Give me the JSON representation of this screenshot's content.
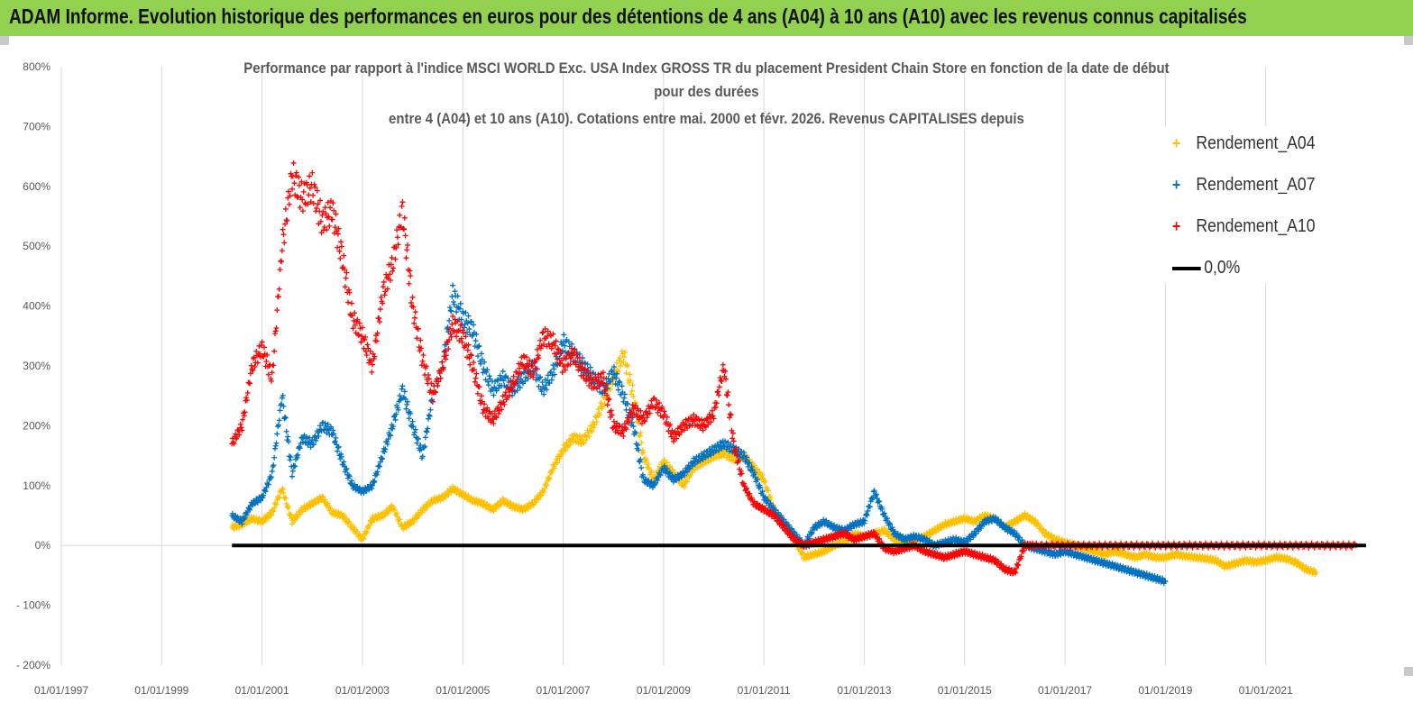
{
  "header": {
    "title": "ADAM Informe. Evolution historique des performances en euros pour des détentions de 4 ans (A04) à 10 ans (A10) avec les revenus connus capitalisés"
  },
  "chart_data": {
    "type": "scatter",
    "title_lines": [
      "Performance par rapport à l'indice MSCI WORLD Exc. USA Index GROSS TR  du placement President Chain Store  en fonction de la date de début",
      "pour des durées",
      "entre 4 (A04) et 10 ans (A10). Cotations entre mai. 2000 et févr. 2026. Revenus CAPITALISES depuis"
    ],
    "y_ticks": [
      "800%",
      "700%",
      "600%",
      "500%",
      "400%",
      "300%",
      "200%",
      "100%",
      "0%",
      "- 100%",
      "- 200%"
    ],
    "ylim": [
      -200,
      800
    ],
    "x_ticks": [
      "01/01/1997",
      "01/01/1999",
      "01/01/2001",
      "01/01/2003",
      "01/01/2005",
      "01/01/2007",
      "01/01/2009",
      "01/01/2011",
      "01/01/2013",
      "01/01/2015",
      "01/01/2017",
      "01/01/2019",
      "01/01/2021"
    ],
    "xlim": [
      1997.0,
      2023.0
    ],
    "series": [
      {
        "name": "Rendement_A04",
        "color": "#ffc000",
        "points": [
          [
            2000.4,
            30
          ],
          [
            2000.6,
            35
          ],
          [
            2000.8,
            45
          ],
          [
            2001.0,
            40
          ],
          [
            2001.2,
            55
          ],
          [
            2001.4,
            95
          ],
          [
            2001.6,
            40
          ],
          [
            2001.8,
            60
          ],
          [
            2002.0,
            70
          ],
          [
            2002.2,
            80
          ],
          [
            2002.4,
            55
          ],
          [
            2002.6,
            50
          ],
          [
            2002.8,
            30
          ],
          [
            2003.0,
            10
          ],
          [
            2003.2,
            45
          ],
          [
            2003.4,
            50
          ],
          [
            2003.6,
            65
          ],
          [
            2003.8,
            30
          ],
          [
            2004.0,
            40
          ],
          [
            2004.2,
            60
          ],
          [
            2004.4,
            75
          ],
          [
            2004.6,
            80
          ],
          [
            2004.8,
            95
          ],
          [
            2005.0,
            85
          ],
          [
            2005.2,
            75
          ],
          [
            2005.4,
            70
          ],
          [
            2005.6,
            60
          ],
          [
            2005.8,
            75
          ],
          [
            2006.0,
            65
          ],
          [
            2006.2,
            60
          ],
          [
            2006.4,
            70
          ],
          [
            2006.6,
            90
          ],
          [
            2006.8,
            130
          ],
          [
            2007.0,
            160
          ],
          [
            2007.2,
            180
          ],
          [
            2007.4,
            175
          ],
          [
            2007.6,
            200
          ],
          [
            2007.8,
            240
          ],
          [
            2008.0,
            280
          ],
          [
            2008.2,
            320
          ],
          [
            2008.4,
            250
          ],
          [
            2008.6,
            150
          ],
          [
            2008.8,
            110
          ],
          [
            2009.0,
            140
          ],
          [
            2009.2,
            120
          ],
          [
            2009.4,
            100
          ],
          [
            2009.6,
            130
          ],
          [
            2009.8,
            140
          ],
          [
            2010.0,
            150
          ],
          [
            2010.2,
            155
          ],
          [
            2010.4,
            145
          ],
          [
            2010.6,
            150
          ],
          [
            2010.8,
            130
          ],
          [
            2011.0,
            110
          ],
          [
            2011.2,
            60
          ],
          [
            2011.4,
            40
          ],
          [
            2011.6,
            10
          ],
          [
            2011.8,
            -20
          ],
          [
            2012.0,
            -15
          ],
          [
            2012.2,
            -10
          ],
          [
            2012.4,
            0
          ],
          [
            2012.6,
            5
          ],
          [
            2012.8,
            20
          ],
          [
            2013.0,
            15
          ],
          [
            2013.2,
            20
          ],
          [
            2013.4,
            25
          ],
          [
            2013.6,
            10
          ],
          [
            2013.8,
            0
          ],
          [
            2014.0,
            10
          ],
          [
            2014.2,
            15
          ],
          [
            2014.4,
            25
          ],
          [
            2014.6,
            35
          ],
          [
            2014.8,
            40
          ],
          [
            2015.0,
            45
          ],
          [
            2015.2,
            40
          ],
          [
            2015.4,
            50
          ],
          [
            2015.6,
            45
          ],
          [
            2015.8,
            30
          ],
          [
            2016.0,
            40
          ],
          [
            2016.2,
            50
          ],
          [
            2016.4,
            40
          ],
          [
            2016.6,
            20
          ],
          [
            2016.8,
            10
          ],
          [
            2017.0,
            5
          ],
          [
            2017.2,
            0
          ],
          [
            2017.4,
            -5
          ],
          [
            2017.6,
            -10
          ],
          [
            2017.8,
            -15
          ],
          [
            2018.0,
            -10
          ],
          [
            2018.2,
            -15
          ],
          [
            2018.4,
            -20
          ],
          [
            2018.6,
            -15
          ],
          [
            2018.8,
            -20
          ],
          [
            2019.0,
            -20
          ],
          [
            2019.2,
            -15
          ],
          [
            2019.4,
            -18
          ],
          [
            2019.6,
            -20
          ],
          [
            2019.8,
            -22
          ],
          [
            2020.0,
            -25
          ],
          [
            2020.2,
            -35
          ],
          [
            2020.4,
            -30
          ],
          [
            2020.6,
            -25
          ],
          [
            2020.8,
            -28
          ],
          [
            2021.0,
            -25
          ],
          [
            2021.2,
            -20
          ],
          [
            2021.4,
            -22
          ],
          [
            2021.6,
            -28
          ],
          [
            2021.8,
            -40
          ],
          [
            2022.0,
            -45
          ]
        ]
      },
      {
        "name": "Rendement_A07",
        "color": "#0070c0",
        "points": [
          [
            2000.4,
            50
          ],
          [
            2000.6,
            40
          ],
          [
            2000.8,
            70
          ],
          [
            2001.0,
            80
          ],
          [
            2001.2,
            120
          ],
          [
            2001.4,
            250
          ],
          [
            2001.6,
            120
          ],
          [
            2001.8,
            180
          ],
          [
            2002.0,
            170
          ],
          [
            2002.2,
            200
          ],
          [
            2002.4,
            190
          ],
          [
            2002.6,
            140
          ],
          [
            2002.8,
            100
          ],
          [
            2003.0,
            90
          ],
          [
            2003.2,
            100
          ],
          [
            2003.4,
            150
          ],
          [
            2003.6,
            200
          ],
          [
            2003.8,
            260
          ],
          [
            2004.0,
            200
          ],
          [
            2004.2,
            150
          ],
          [
            2004.4,
            250
          ],
          [
            2004.6,
            300
          ],
          [
            2004.8,
            420
          ],
          [
            2005.0,
            380
          ],
          [
            2005.2,
            360
          ],
          [
            2005.4,
            300
          ],
          [
            2005.6,
            260
          ],
          [
            2005.8,
            280
          ],
          [
            2006.0,
            260
          ],
          [
            2006.2,
            280
          ],
          [
            2006.4,
            300
          ],
          [
            2006.6,
            260
          ],
          [
            2006.8,
            290
          ],
          [
            2007.0,
            340
          ],
          [
            2007.2,
            320
          ],
          [
            2007.4,
            300
          ],
          [
            2007.6,
            280
          ],
          [
            2007.8,
            260
          ],
          [
            2008.0,
            290
          ],
          [
            2008.2,
            250
          ],
          [
            2008.4,
            200
          ],
          [
            2008.6,
            110
          ],
          [
            2008.8,
            100
          ],
          [
            2009.0,
            130
          ],
          [
            2009.2,
            110
          ],
          [
            2009.4,
            120
          ],
          [
            2009.6,
            140
          ],
          [
            2009.8,
            150
          ],
          [
            2010.0,
            160
          ],
          [
            2010.2,
            170
          ],
          [
            2010.4,
            160
          ],
          [
            2010.6,
            150
          ],
          [
            2010.8,
            120
          ],
          [
            2011.0,
            80
          ],
          [
            2011.2,
            60
          ],
          [
            2011.4,
            40
          ],
          [
            2011.6,
            20
          ],
          [
            2011.8,
            0
          ],
          [
            2012.0,
            30
          ],
          [
            2012.2,
            40
          ],
          [
            2012.4,
            30
          ],
          [
            2012.6,
            25
          ],
          [
            2012.8,
            35
          ],
          [
            2013.0,
            40
          ],
          [
            2013.2,
            90
          ],
          [
            2013.4,
            50
          ],
          [
            2013.6,
            20
          ],
          [
            2013.8,
            10
          ],
          [
            2014.0,
            15
          ],
          [
            2014.2,
            10
          ],
          [
            2014.4,
            0
          ],
          [
            2014.6,
            5
          ],
          [
            2014.8,
            10
          ],
          [
            2015.0,
            5
          ],
          [
            2015.2,
            20
          ],
          [
            2015.4,
            40
          ],
          [
            2015.6,
            45
          ],
          [
            2015.8,
            30
          ],
          [
            2016.0,
            20
          ],
          [
            2016.2,
            0
          ],
          [
            2016.4,
            -5
          ],
          [
            2016.6,
            -10
          ],
          [
            2016.8,
            -15
          ],
          [
            2017.0,
            -10
          ],
          [
            2017.2,
            -15
          ],
          [
            2017.4,
            -20
          ],
          [
            2017.6,
            -25
          ],
          [
            2017.8,
            -30
          ],
          [
            2018.0,
            -35
          ],
          [
            2018.2,
            -40
          ],
          [
            2018.4,
            -45
          ],
          [
            2018.6,
            -50
          ],
          [
            2018.8,
            -55
          ],
          [
            2019.0,
            -60
          ]
        ]
      },
      {
        "name": "Rendement_A10",
        "color": "#ff0000",
        "points": [
          [
            2000.4,
            170
          ],
          [
            2000.6,
            200
          ],
          [
            2000.8,
            300
          ],
          [
            2001.0,
            330
          ],
          [
            2001.2,
            280
          ],
          [
            2001.4,
            500
          ],
          [
            2001.6,
            620
          ],
          [
            2001.8,
            580
          ],
          [
            2002.0,
            600
          ],
          [
            2002.2,
            540
          ],
          [
            2002.4,
            560
          ],
          [
            2002.6,
            480
          ],
          [
            2002.8,
            380
          ],
          [
            2003.0,
            350
          ],
          [
            2003.2,
            300
          ],
          [
            2003.4,
            420
          ],
          [
            2003.6,
            470
          ],
          [
            2003.8,
            560
          ],
          [
            2004.0,
            400
          ],
          [
            2004.2,
            310
          ],
          [
            2004.4,
            250
          ],
          [
            2004.6,
            300
          ],
          [
            2004.8,
            370
          ],
          [
            2005.0,
            350
          ],
          [
            2005.2,
            300
          ],
          [
            2005.4,
            230
          ],
          [
            2005.6,
            210
          ],
          [
            2005.8,
            240
          ],
          [
            2006.0,
            270
          ],
          [
            2006.2,
            310
          ],
          [
            2006.4,
            290
          ],
          [
            2006.6,
            350
          ],
          [
            2006.8,
            340
          ],
          [
            2007.0,
            300
          ],
          [
            2007.2,
            320
          ],
          [
            2007.4,
            290
          ],
          [
            2007.6,
            270
          ],
          [
            2007.8,
            280
          ],
          [
            2008.0,
            200
          ],
          [
            2008.2,
            190
          ],
          [
            2008.4,
            230
          ],
          [
            2008.6,
            210
          ],
          [
            2008.8,
            240
          ],
          [
            2009.0,
            220
          ],
          [
            2009.2,
            180
          ],
          [
            2009.4,
            200
          ],
          [
            2009.6,
            210
          ],
          [
            2009.8,
            200
          ],
          [
            2010.0,
            220
          ],
          [
            2010.2,
            300
          ],
          [
            2010.4,
            170
          ],
          [
            2010.6,
            100
          ],
          [
            2010.8,
            70
          ],
          [
            2011.0,
            60
          ],
          [
            2011.2,
            50
          ],
          [
            2011.4,
            30
          ],
          [
            2011.6,
            10
          ],
          [
            2011.8,
            0
          ],
          [
            2012.0,
            5
          ],
          [
            2012.2,
            10
          ],
          [
            2012.4,
            15
          ],
          [
            2012.6,
            20
          ],
          [
            2012.8,
            10
          ],
          [
            2013.0,
            15
          ],
          [
            2013.2,
            20
          ],
          [
            2013.4,
            -5
          ],
          [
            2013.6,
            -10
          ],
          [
            2013.8,
            -5
          ],
          [
            2014.0,
            0
          ],
          [
            2014.2,
            -10
          ],
          [
            2014.4,
            -15
          ],
          [
            2014.6,
            -20
          ],
          [
            2014.8,
            -15
          ],
          [
            2015.0,
            -10
          ],
          [
            2015.2,
            -15
          ],
          [
            2015.4,
            -20
          ],
          [
            2015.6,
            -25
          ],
          [
            2015.8,
            -40
          ],
          [
            2016.0,
            -45
          ],
          [
            2016.2,
            0
          ],
          [
            2016.4,
            0
          ],
          [
            2016.8,
            0
          ],
          [
            2017.2,
            0
          ],
          [
            2017.6,
            0
          ],
          [
            2018.0,
            0
          ],
          [
            2018.4,
            0
          ],
          [
            2018.8,
            0
          ],
          [
            2019.2,
            0
          ],
          [
            2019.6,
            0
          ],
          [
            2020.0,
            0
          ],
          [
            2020.4,
            0
          ],
          [
            2020.8,
            0
          ],
          [
            2021.2,
            0
          ],
          [
            2021.6,
            0
          ],
          [
            2022.0,
            0
          ],
          [
            2022.4,
            0
          ],
          [
            2022.8,
            0
          ]
        ]
      },
      {
        "name": "0,0%",
        "color": "#000000",
        "type": "line",
        "points": [
          [
            2000.4,
            0
          ],
          [
            2023.0,
            0
          ]
        ]
      }
    ],
    "legend": [
      "Rendement_A04",
      "Rendement_A07",
      "Rendement_A10",
      "0,0%"
    ],
    "legend_position": "top-right",
    "grid": "vertical"
  }
}
